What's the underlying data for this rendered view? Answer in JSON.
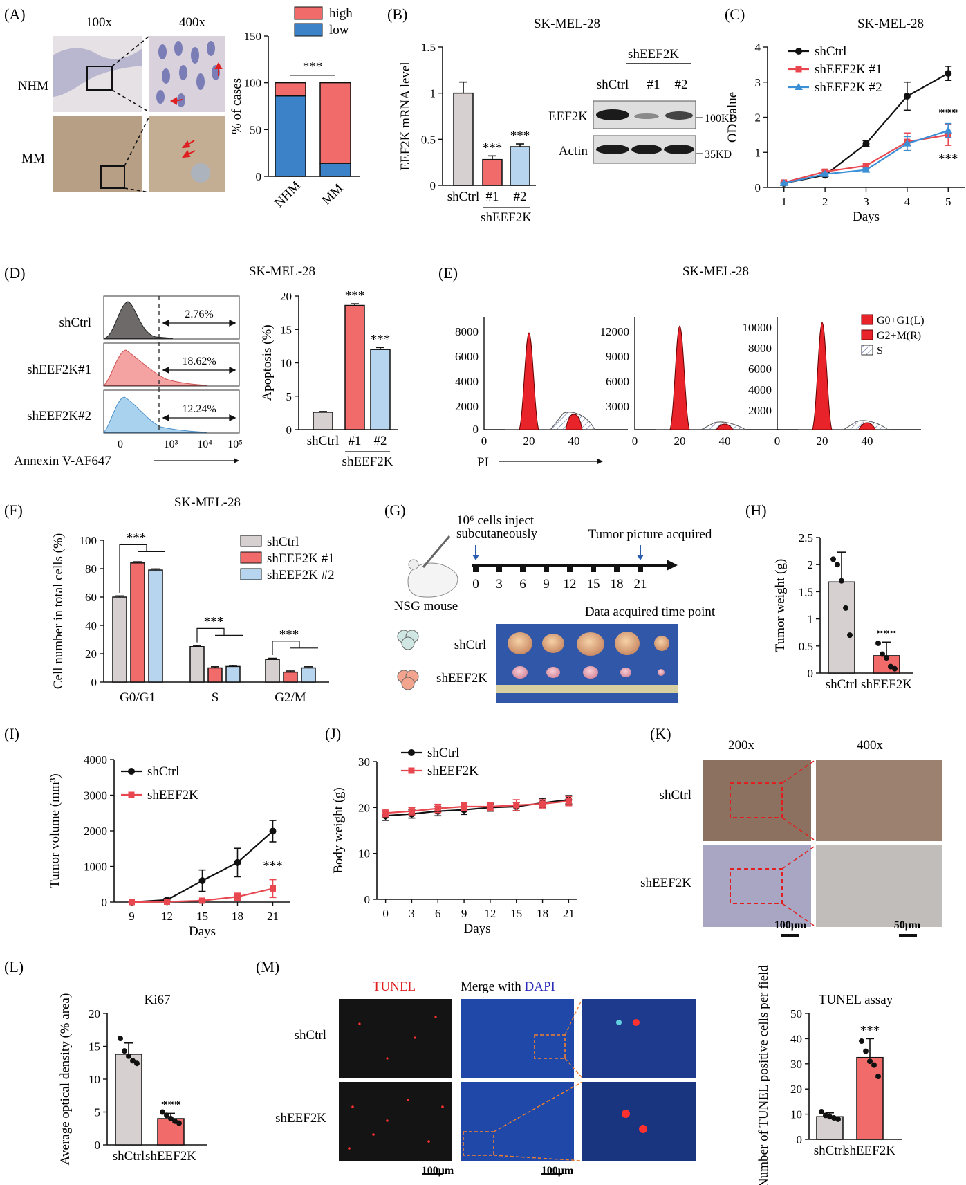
{
  "colors": {
    "ctrl": "#d6d0d0",
    "kd1": "#f26b6b",
    "kd2": "#b7d5ee",
    "high": "#f26b6b",
    "low": "#3b82c8",
    "black": "#111111",
    "red": "#e8474f",
    "blue": "#3b8fd6"
  },
  "panels": {
    "A": {
      "label": "(A)",
      "mag1": "100x",
      "mag2": "400x",
      "rows": [
        "NHM",
        "MM"
      ]
    },
    "B": {
      "label": "(B)",
      "title": "SK-MEL-28",
      "blot_group": "shEEF2K",
      "blot_lanes": [
        "shCtrl",
        "#1",
        "#2"
      ],
      "blot_rows": [
        "EEF2K",
        "Actin"
      ],
      "blot_kd": [
        "100KD",
        "35KD"
      ]
    },
    "C": {
      "label": "(C)",
      "title": "SK-MEL-28"
    },
    "D": {
      "label": "(D)",
      "title": "SK-MEL-28",
      "flow_rows": [
        "shCtrl",
        "shEEF2K#1",
        "shEEF2K#2"
      ],
      "flow_pct": [
        "2.76%",
        "18.62%",
        "12.24%"
      ],
      "flow_xlabel": "Annexin V-AF647",
      "flow_ticks": [
        "0",
        "10³",
        "10⁴",
        "10⁵"
      ]
    },
    "E": {
      "label": "(E)",
      "title": "SK-MEL-28",
      "xlabel": "PI",
      "legend": [
        "G0+G1(L)",
        "G2+M(R)",
        "S"
      ],
      "yticks": [
        [
          "0",
          "2000",
          "4000",
          "6000",
          "8000"
        ],
        [
          "3000",
          "6000",
          "9000",
          "12000"
        ],
        [
          "2000",
          "4000",
          "6000",
          "8000",
          "10000"
        ]
      ],
      "xticks": [
        "0",
        "20",
        "40"
      ]
    },
    "F": {
      "label": "(F)",
      "title": "SK-MEL-28"
    },
    "G": {
      "label": "(G)",
      "inject": "10⁶ cells inject",
      "inject2": "subcutaneously",
      "picture": "Tumor picture acquired",
      "mouse": "NSG mouse",
      "timepoint": "Data acquired time point",
      "days": [
        "0",
        "3",
        "6",
        "9",
        "12",
        "15",
        "18",
        "21"
      ],
      "groups": [
        "shCtrl",
        "shEEF2K"
      ]
    },
    "H": {
      "label": "(H)"
    },
    "I": {
      "label": "(I)"
    },
    "J": {
      "label": "(J)"
    },
    "K": {
      "label": "(K)",
      "mag1": "200x",
      "mag2": "400x",
      "rows": [
        "shCtrl",
        "shEEF2K"
      ],
      "scale1": "100μm",
      "scale2": "50μm"
    },
    "L": {
      "label": "(L)"
    },
    "M": {
      "label": "(M)",
      "tunel": "TUNEL",
      "merge": "Merge with ",
      "dapi": "DAPI",
      "rows": [
        "shCtrl",
        "shEEF2K"
      ],
      "scale": "100μm"
    }
  },
  "sig": "***",
  "chart_data": [
    {
      "id": "A",
      "type": "bar",
      "stacked": true,
      "categories": [
        "NHM",
        "MM"
      ],
      "series": [
        {
          "name": "low",
          "values": [
            86,
            14
          ]
        },
        {
          "name": "high",
          "values": [
            14,
            86
          ]
        }
      ],
      "ylabel": "% of cases",
      "ylim": [
        0,
        150
      ],
      "yticks": [
        0,
        50,
        100,
        150
      ],
      "legend": "top"
    },
    {
      "id": "B",
      "type": "bar",
      "categories": [
        "shCtrl",
        "#1",
        "#2"
      ],
      "group_label": "shEEF2K",
      "values": [
        1.0,
        0.28,
        0.42
      ],
      "errors": [
        0.12,
        0.04,
        0.03
      ],
      "ylabel": "EEF2K mRNA level",
      "ylim": [
        0,
        1.5
      ],
      "yticks": [
        0,
        0.5,
        1.0,
        1.5
      ]
    },
    {
      "id": "C",
      "type": "line",
      "x": [
        1,
        2,
        3,
        4,
        5
      ],
      "series": [
        {
          "name": "shCtrl",
          "values": [
            0.12,
            0.35,
            1.25,
            2.6,
            3.25
          ],
          "errors": [
            0.02,
            0.04,
            0.08,
            0.4,
            0.2
          ]
        },
        {
          "name": "shEEF2K #1",
          "values": [
            0.14,
            0.45,
            0.62,
            1.3,
            1.5
          ],
          "errors": [
            0.02,
            0.04,
            0.06,
            0.25,
            0.3
          ]
        },
        {
          "name": "shEEF2K #2",
          "values": [
            0.12,
            0.38,
            0.5,
            1.25,
            1.62
          ],
          "errors": [
            0.02,
            0.03,
            0.05,
            0.2,
            0.2
          ]
        }
      ],
      "xlabel": "Days",
      "ylabel": "OD value",
      "ylim": [
        0,
        4
      ],
      "yticks": [
        0,
        1,
        2,
        3,
        4
      ],
      "legend": "top-left"
    },
    {
      "id": "D",
      "type": "bar",
      "categories": [
        "shCtrl",
        "#1",
        "#2"
      ],
      "group_label": "shEEF2K",
      "values": [
        2.6,
        18.6,
        12.0
      ],
      "errors": [
        0.1,
        0.25,
        0.3
      ],
      "ylabel": "Apoptosis (%)",
      "ylim": [
        0,
        20
      ],
      "yticks": [
        0,
        5,
        10,
        15,
        20
      ]
    },
    {
      "id": "F",
      "type": "bar",
      "categories": [
        "G0/G1",
        "S",
        "G2/M"
      ],
      "series": [
        {
          "name": "shCtrl",
          "values": [
            60,
            25,
            16
          ]
        },
        {
          "name": "shEEF2K #1",
          "values": [
            84,
            10,
            7
          ]
        },
        {
          "name": "shEEF2K #2",
          "values": [
            79,
            11,
            10
          ]
        }
      ],
      "ylabel": "Cell number in total cells (%)",
      "ylim": [
        0,
        100
      ],
      "yticks": [
        0,
        20,
        40,
        60,
        80,
        100
      ],
      "legend": "top-right"
    },
    {
      "id": "H",
      "type": "bar",
      "categories": [
        "shCtrl",
        "shEEF2K"
      ],
      "values": [
        1.68,
        0.32
      ],
      "errors": [
        0.55,
        0.25
      ],
      "points": [
        [
          2.1,
          2.0,
          1.7,
          1.2,
          0.7
        ],
        [
          0.55,
          0.35,
          0.28,
          0.12,
          0.08
        ]
      ],
      "ylabel": "Tumor weight (g)",
      "ylim": [
        0,
        2.5
      ],
      "yticks": [
        0,
        0.5,
        1.0,
        1.5,
        2.0,
        2.5
      ]
    },
    {
      "id": "I",
      "type": "line",
      "x": [
        9,
        12,
        15,
        18,
        21
      ],
      "series": [
        {
          "name": "shCtrl",
          "values": [
            0,
            60,
            600,
            1110,
            1990
          ],
          "errors": [
            10,
            40,
            300,
            400,
            300
          ]
        },
        {
          "name": "shEEF2K",
          "values": [
            0,
            10,
            40,
            150,
            380
          ],
          "errors": [
            5,
            10,
            30,
            100,
            250
          ]
        }
      ],
      "xlabel": "Days",
      "ylabel": "Tumor volume (mm³)",
      "ylim": [
        0,
        4000
      ],
      "yticks": [
        0,
        1000,
        2000,
        3000,
        4000
      ],
      "legend": "top-left"
    },
    {
      "id": "J",
      "type": "line",
      "x": [
        0,
        3,
        6,
        9,
        12,
        15,
        18,
        21
      ],
      "series": [
        {
          "name": "shCtrl",
          "values": [
            18.2,
            18.6,
            19.2,
            19.5,
            20.0,
            20.2,
            21.0,
            21.7
          ],
          "errors": [
            1.0,
            0.9,
            1.0,
            1.0,
            0.8,
            0.9,
            1.0,
            0.9
          ]
        },
        {
          "name": "shEEF2K",
          "values": [
            18.8,
            19.2,
            19.8,
            20.2,
            20.2,
            20.5,
            20.8,
            21.4
          ],
          "errors": [
            0.8,
            0.8,
            0.9,
            0.8,
            0.8,
            1.2,
            0.9,
            1.0
          ]
        }
      ],
      "xlabel": "Days",
      "ylabel": "Body weight (g)",
      "ylim": [
        0,
        30
      ],
      "yticks": [
        0,
        10,
        20,
        30
      ],
      "legend": "top-left"
    },
    {
      "id": "L",
      "type": "bar",
      "title": "Ki67",
      "categories": [
        "shCtrl",
        "shEEF2K"
      ],
      "values": [
        13.8,
        4.0
      ],
      "errors": [
        1.7,
        0.8
      ],
      "points": [
        [
          16.2,
          14.3,
          13.5,
          12.8,
          12.4
        ],
        [
          5.0,
          4.5,
          4.0,
          3.6,
          3.3
        ]
      ],
      "ylabel": "Average optical density (% area)",
      "ylim": [
        0,
        20
      ],
      "yticks": [
        0,
        5,
        10,
        15,
        20
      ]
    },
    {
      "id": "M",
      "type": "bar",
      "title": "TUNEL assay",
      "categories": [
        "shCtrl",
        "shEEF2K"
      ],
      "values": [
        9.0,
        32.5
      ],
      "errors": [
        1.5,
        7.5
      ],
      "points": [
        [
          11.0,
          9.5,
          9.0,
          8.5,
          8.0
        ],
        [
          39.0,
          35.0,
          31.0,
          29.5,
          25.0
        ]
      ],
      "ylabel": "Number of TUNEL positive cells per field",
      "ylim": [
        0,
        50
      ],
      "yticks": [
        0,
        10,
        20,
        30,
        40,
        50
      ]
    }
  ]
}
